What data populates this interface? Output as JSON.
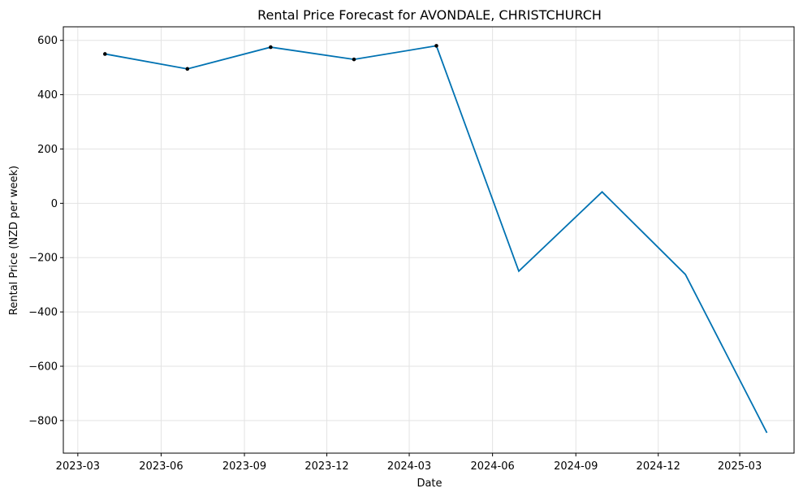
{
  "chart_data": {
    "type": "line",
    "title": "Rental Price Forecast for AVONDALE, CHRISTCHURCH",
    "xlabel": "Date",
    "ylabel": "Rental Price (NZD per week)",
    "ylim": [
      -920,
      650
    ],
    "xlim": [
      "2023-02-13",
      "2025-04-30"
    ],
    "grid": true,
    "x_ticks": [
      "2023-03-01",
      "2023-06-01",
      "2023-09-01",
      "2023-12-01",
      "2024-03-01",
      "2024-06-01",
      "2024-09-01",
      "2024-12-01",
      "2025-03-01"
    ],
    "x_tick_labels": [
      "2023-03",
      "2023-06",
      "2023-09",
      "2023-12",
      "2024-03",
      "2024-06",
      "2024-09",
      "2024-12",
      "2025-03"
    ],
    "y_ticks": [
      600,
      400,
      200,
      0,
      -200,
      -400,
      -600,
      -800
    ],
    "y_tick_labels": [
      "600",
      "400",
      "200",
      "0",
      "−200",
      "−400",
      "−600",
      "−800"
    ],
    "series": [
      {
        "name": "forecast",
        "color": "#0072B2",
        "x": [
          "2023-03-31",
          "2023-06-30",
          "2023-09-30",
          "2023-12-31",
          "2024-03-31",
          "2024-06-30",
          "2024-09-30",
          "2024-12-31",
          "2025-03-31"
        ],
        "values": [
          550,
          495,
          575,
          530,
          580,
          -250,
          42,
          -262,
          -845
        ]
      },
      {
        "name": "observed",
        "color": "#000000",
        "x": [
          "2023-03-31",
          "2023-06-30",
          "2023-09-30",
          "2023-12-31",
          "2024-03-31"
        ],
        "values": [
          550,
          495,
          575,
          530,
          580
        ]
      }
    ]
  }
}
